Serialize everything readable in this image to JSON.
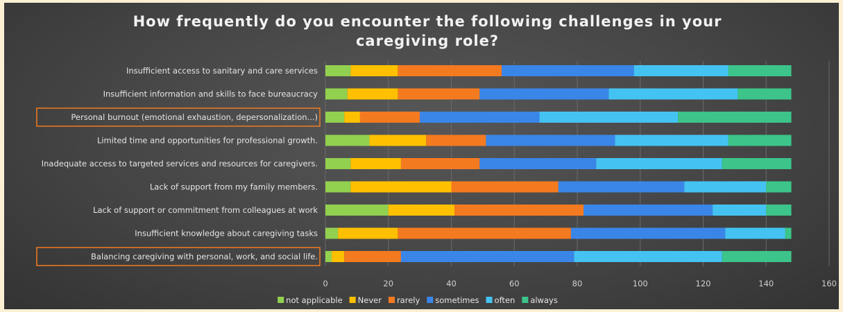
{
  "chart_data": {
    "type": "bar",
    "orientation": "horizontal",
    "stacked": true,
    "title": "How frequently do you encounter the following challenges in your caregiving role?",
    "xlim": [
      0,
      160
    ],
    "x_ticks": [
      0,
      20,
      40,
      60,
      80,
      100,
      120,
      140,
      160
    ],
    "grid": true,
    "legend_position": "bottom",
    "categories": [
      "Insufficient access to sanitary and care services",
      "Insufficient information and skills to face bureaucracy",
      "Personal burnout (emotional exhaustion, depersonalization...)",
      "Limited time and opportunities for professional growth.",
      "Inadequate access to targeted services and resources for caregivers.",
      "Lack of support from my family members.",
      "Lack of support or commitment from colleagues at work",
      "Insufficient knowledge about caregiving tasks",
      "Balancing caregiving with personal, work, and social life."
    ],
    "highlighted_categories": [
      "Personal burnout (emotional exhaustion, depersonalization...)",
      "Balancing caregiving with personal, work, and social life."
    ],
    "series": [
      {
        "name": "not applicable",
        "color": "#92d050",
        "values": [
          8,
          7,
          6,
          14,
          8,
          8,
          20,
          4,
          2
        ]
      },
      {
        "name": "Never",
        "color": "#ffc000",
        "values": [
          15,
          16,
          5,
          18,
          16,
          32,
          21,
          19,
          4
        ]
      },
      {
        "name": "rarely",
        "color": "#f47a20",
        "values": [
          33,
          26,
          19,
          19,
          25,
          34,
          41,
          55,
          18
        ]
      },
      {
        "name": "sometimes",
        "color": "#3a86e8",
        "values": [
          42,
          41,
          38,
          41,
          37,
          40,
          41,
          49,
          55
        ]
      },
      {
        "name": "often",
        "color": "#44c3f2",
        "values": [
          30,
          41,
          44,
          36,
          40,
          26,
          17,
          19,
          47
        ]
      },
      {
        "name": "always",
        "color": "#3cc48a",
        "values": [
          20,
          17,
          36,
          20,
          22,
          8,
          8,
          2,
          22
        ]
      }
    ]
  }
}
